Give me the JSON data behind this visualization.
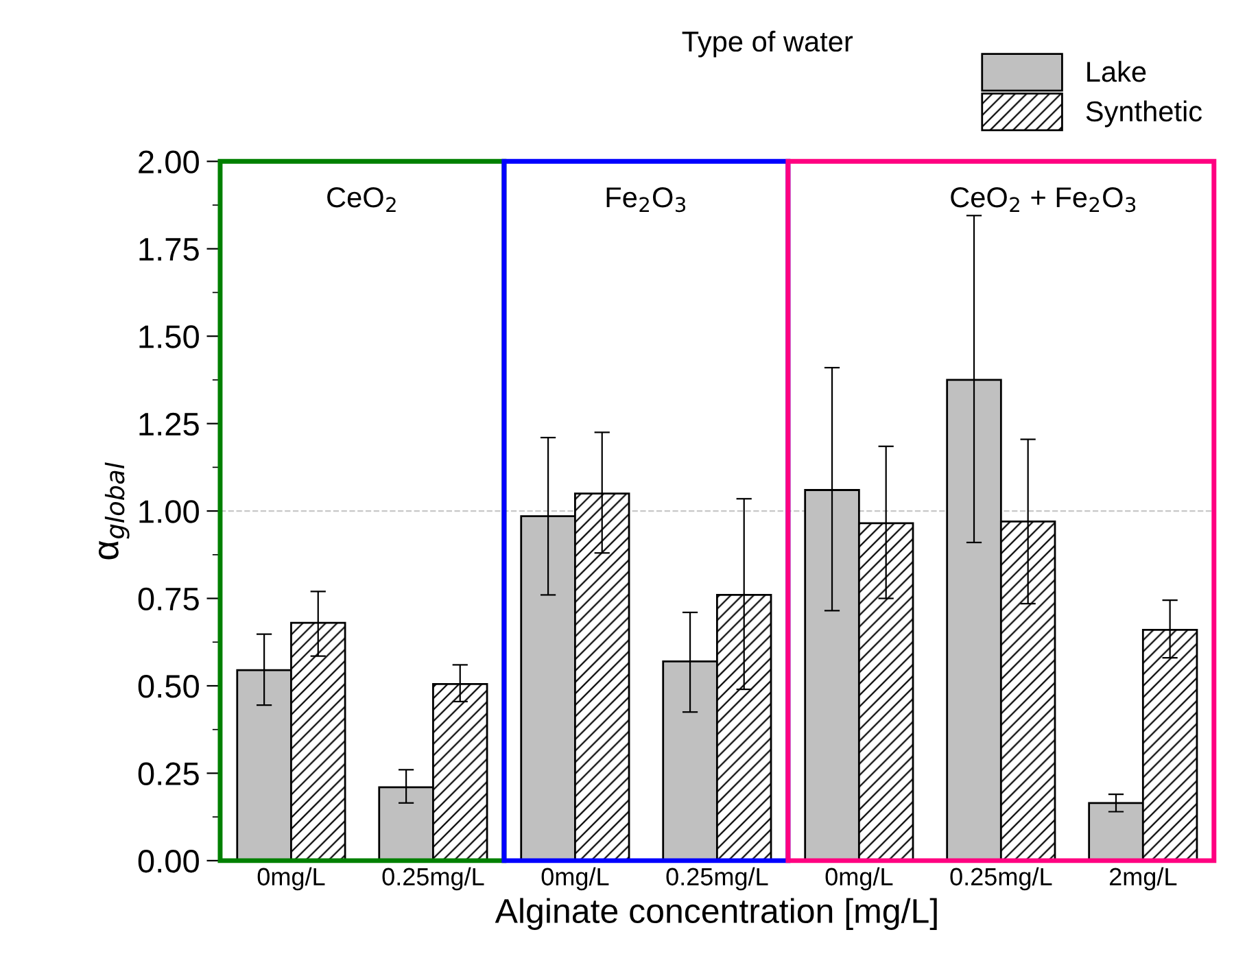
{
  "chart_data": {
    "type": "bar",
    "xlabel": "Alginate concentration [mg/L]",
    "ylabel": "α$_{global}$",
    "legend_title": "Type of water",
    "categories": [
      "0mg/L",
      "0.25mg/L",
      "0mg/L",
      "0.25mg/L",
      "0mg/L",
      "0.25mg/L",
      "2mg/L"
    ],
    "series": [
      {
        "name": "Lake",
        "color": "#c0c0c0",
        "values": [
          0.545,
          0.21,
          0.985,
          0.57,
          1.06,
          1.375,
          0.165
        ],
        "errors": [
          [
            0.445,
            0.648
          ],
          [
            0.165,
            0.26
          ],
          [
            0.76,
            1.21
          ],
          [
            0.425,
            0.71
          ],
          [
            0.715,
            1.41
          ],
          [
            0.91,
            1.845
          ],
          [
            0.14,
            0.19
          ]
        ]
      },
      {
        "name": "Synthetic",
        "color": "#000000",
        "values": [
          0.68,
          0.505,
          1.05,
          0.76,
          0.965,
          0.97,
          0.66
        ],
        "errors": [
          [
            0.585,
            0.77
          ],
          [
            0.455,
            0.56
          ],
          [
            0.88,
            1.225
          ],
          [
            0.49,
            1.035
          ],
          [
            0.75,
            1.185
          ],
          [
            0.735,
            1.205
          ],
          [
            0.58,
            0.745
          ]
        ]
      }
    ],
    "ylim": [
      0,
      2.0
    ],
    "yticks": [
      {
        "value": 0,
        "label": "0.00"
      },
      {
        "value": 0.25,
        "label": "0.25"
      },
      {
        "value": 0.5,
        "label": "0.50"
      },
      {
        "value": 0.75,
        "label": "0.75"
      },
      {
        "value": 1.0,
        "label": "1.00"
      },
      {
        "value": 1.25,
        "label": "1.25"
      },
      {
        "value": 1.5,
        "label": "1.50"
      },
      {
        "value": 1.75,
        "label": "1.75"
      },
      {
        "value": 2.0,
        "label": "2.00"
      }
    ],
    "ref_lines": [
      {
        "axis": "y",
        "value": 1.0,
        "color": "#c8c8c8",
        "line_style": "dashed"
      }
    ],
    "annotations": [
      "CeO$_{2}$",
      "Fe$_{2}$O$_{3}$",
      "CeO$_{2}$ + Fe$_{2}$O$_{3}$"
    ],
    "legend": "top right",
    "grid": false
  }
}
